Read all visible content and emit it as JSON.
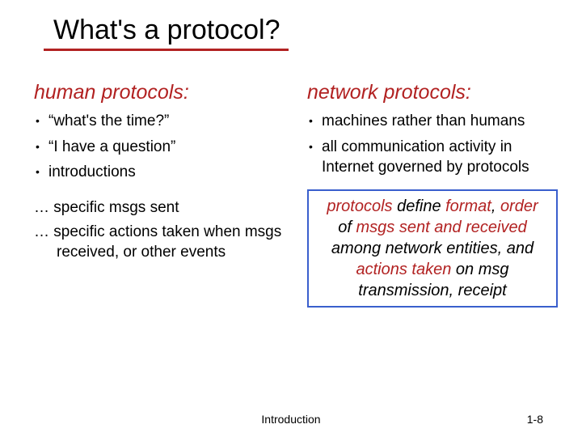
{
  "title": "What's a protocol?",
  "colors": {
    "accent": "#b22222",
    "box_border": "#3a5fcd",
    "text": "#000000",
    "background": "#ffffff"
  },
  "left": {
    "heading": "human protocols:",
    "bullets": [
      "“what's the time?”",
      "“I have a question”",
      "introductions"
    ],
    "ellipsis": [
      "… specific msgs sent",
      "… specific actions taken when msgs received, or other events"
    ]
  },
  "right": {
    "heading": "network protocols:",
    "bullets": [
      "machines rather than humans",
      "all communication activity in Internet governed by protocols"
    ],
    "summary": {
      "parts": [
        {
          "t": "protocols",
          "hl": true
        },
        {
          "t": " define ",
          "hl": false
        },
        {
          "t": "format",
          "hl": true
        },
        {
          "t": ", ",
          "hl": false
        },
        {
          "t": "order",
          "hl": true
        },
        {
          "t": " of ",
          "hl": false
        },
        {
          "t": "msgs sent and received",
          "hl": true
        },
        {
          "t": " among network entities, and ",
          "hl": false
        },
        {
          "t": "actions taken",
          "hl": true
        },
        {
          "t": " on msg transmission, receipt",
          "hl": false
        }
      ]
    }
  },
  "footer": {
    "center": "Introduction",
    "right_prefix": "1-",
    "page": "8"
  }
}
